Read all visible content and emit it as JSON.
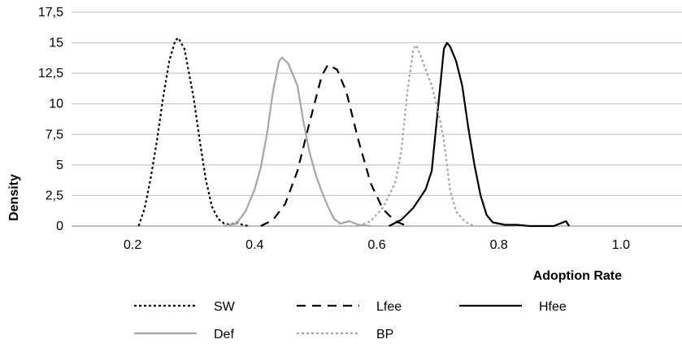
{
  "chart_data": {
    "type": "line",
    "xlabel": "Adoption Rate",
    "ylabel": "Density",
    "xlim": [
      0.1,
      1.1
    ],
    "ylim": [
      0,
      17.5
    ],
    "x_ticks": [
      "0.2",
      "0.4",
      "0.6",
      "0.8",
      "1.0"
    ],
    "x_tick_values": [
      0.2,
      0.4,
      0.6,
      0.8,
      1.0
    ],
    "y_ticks": [
      "0",
      "2,5",
      "5",
      "7,5",
      "10",
      "12,5",
      "15",
      "17,5"
    ],
    "y_tick_values": [
      0,
      2.5,
      5,
      7.5,
      10,
      12.5,
      15,
      17.5
    ],
    "grid": "horizontal",
    "legend_position": "bottom",
    "series": [
      {
        "name": "SW",
        "color": "#000000",
        "style": "dotted",
        "points": [
          [
            0.21,
            0.0
          ],
          [
            0.22,
            1.5
          ],
          [
            0.23,
            4.0
          ],
          [
            0.24,
            7.0
          ],
          [
            0.25,
            10.5
          ],
          [
            0.26,
            13.5
          ],
          [
            0.27,
            15.2
          ],
          [
            0.275,
            15.4
          ],
          [
            0.285,
            14.5
          ],
          [
            0.3,
            10.5
          ],
          [
            0.31,
            7.0
          ],
          [
            0.32,
            3.8
          ],
          [
            0.33,
            1.6
          ],
          [
            0.34,
            0.6
          ],
          [
            0.35,
            0.2
          ],
          [
            0.36,
            0.1
          ],
          [
            0.37,
            0.3
          ],
          [
            0.38,
            0.1
          ],
          [
            0.39,
            0.0
          ]
        ]
      },
      {
        "name": "Lfee",
        "color": "#000000",
        "style": "dashed",
        "points": [
          [
            0.41,
            0.0
          ],
          [
            0.43,
            0.5
          ],
          [
            0.45,
            1.8
          ],
          [
            0.47,
            4.5
          ],
          [
            0.49,
            8.5
          ],
          [
            0.51,
            12.3
          ],
          [
            0.52,
            13.2
          ],
          [
            0.535,
            12.8
          ],
          [
            0.55,
            11.0
          ],
          [
            0.57,
            7.0
          ],
          [
            0.59,
            3.5
          ],
          [
            0.61,
            1.4
          ],
          [
            0.63,
            0.4
          ],
          [
            0.65,
            0.0
          ]
        ]
      },
      {
        "name": "Hfee",
        "color": "#000000",
        "style": "solid",
        "points": [
          [
            0.62,
            0.0
          ],
          [
            0.64,
            0.5
          ],
          [
            0.66,
            1.5
          ],
          [
            0.68,
            3.0
          ],
          [
            0.69,
            4.5
          ],
          [
            0.7,
            9.5
          ],
          [
            0.71,
            14.5
          ],
          [
            0.715,
            15.0
          ],
          [
            0.72,
            14.7
          ],
          [
            0.73,
            13.5
          ],
          [
            0.74,
            11.5
          ],
          [
            0.75,
            8.0
          ],
          [
            0.76,
            5.0
          ],
          [
            0.77,
            2.5
          ],
          [
            0.78,
            0.9
          ],
          [
            0.79,
            0.3
          ],
          [
            0.81,
            0.1
          ],
          [
            0.83,
            0.1
          ],
          [
            0.85,
            0.0
          ],
          [
            0.89,
            0.0
          ],
          [
            0.91,
            0.4
          ],
          [
            0.915,
            0.0
          ]
        ]
      },
      {
        "name": "Def",
        "color": "#a6a6a6",
        "style": "solid",
        "points": [
          [
            0.35,
            0.0
          ],
          [
            0.37,
            0.2
          ],
          [
            0.385,
            1.2
          ],
          [
            0.4,
            3.0
          ],
          [
            0.41,
            4.8
          ],
          [
            0.42,
            7.5
          ],
          [
            0.43,
            11.0
          ],
          [
            0.44,
            13.5
          ],
          [
            0.445,
            13.8
          ],
          [
            0.455,
            13.3
          ],
          [
            0.47,
            11.5
          ],
          [
            0.48,
            8.5
          ],
          [
            0.49,
            6.0
          ],
          [
            0.5,
            4.2
          ],
          [
            0.51,
            2.8
          ],
          [
            0.52,
            1.6
          ],
          [
            0.53,
            0.6
          ],
          [
            0.54,
            0.2
          ],
          [
            0.555,
            0.4
          ],
          [
            0.57,
            0.1
          ],
          [
            0.59,
            0.0
          ]
        ]
      },
      {
        "name": "BP",
        "color": "#a6a6a6",
        "style": "dotted",
        "points": [
          [
            0.57,
            0.0
          ],
          [
            0.59,
            0.4
          ],
          [
            0.61,
            1.5
          ],
          [
            0.63,
            3.5
          ],
          [
            0.64,
            6.0
          ],
          [
            0.65,
            11.0
          ],
          [
            0.66,
            14.5
          ],
          [
            0.665,
            14.8
          ],
          [
            0.675,
            13.5
          ],
          [
            0.69,
            11.5
          ],
          [
            0.7,
            9.5
          ],
          [
            0.71,
            7.0
          ],
          [
            0.72,
            3.0
          ],
          [
            0.73,
            1.2
          ],
          [
            0.74,
            0.6
          ],
          [
            0.75,
            0.2
          ],
          [
            0.76,
            0.0
          ]
        ]
      }
    ]
  }
}
